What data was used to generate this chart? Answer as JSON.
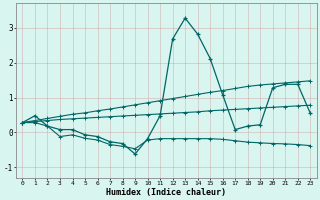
{
  "xlabel": "Humidex (Indice chaleur)",
  "background_color": "#d8f5f0",
  "grid_color": "#aacfcf",
  "line_color": "#006666",
  "xlim": [
    -0.5,
    23.5
  ],
  "ylim": [
    -1.3,
    3.7
  ],
  "xticks": [
    0,
    1,
    2,
    3,
    4,
    5,
    6,
    7,
    8,
    9,
    10,
    11,
    12,
    13,
    14,
    15,
    16,
    17,
    18,
    19,
    20,
    21,
    22,
    23
  ],
  "yticks": [
    -1,
    0,
    1,
    2,
    3
  ],
  "line1_x": [
    0,
    1,
    2,
    3,
    4,
    5,
    6,
    7,
    8,
    9,
    10,
    11,
    12,
    13,
    14,
    15,
    16,
    17,
    18,
    19,
    20,
    21,
    22,
    23
  ],
  "line1_y": [
    0.28,
    0.48,
    0.18,
    0.08,
    0.08,
    -0.07,
    -0.12,
    -0.27,
    -0.32,
    -0.62,
    -0.18,
    0.48,
    2.68,
    3.28,
    2.82,
    2.12,
    1.08,
    0.08,
    0.18,
    0.22,
    1.28,
    1.38,
    1.38,
    0.55
  ],
  "line2_x": [
    0,
    1,
    2,
    3,
    4,
    5,
    6,
    7,
    8,
    9,
    10,
    11,
    12,
    13,
    14,
    15,
    16,
    17,
    18,
    19,
    20,
    21,
    22,
    23
  ],
  "line2_y": [
    0.28,
    0.34,
    0.4,
    0.46,
    0.52,
    0.56,
    0.62,
    0.67,
    0.73,
    0.79,
    0.85,
    0.91,
    0.97,
    1.03,
    1.09,
    1.15,
    1.2,
    1.26,
    1.32,
    1.36,
    1.39,
    1.42,
    1.45,
    1.48
  ],
  "line3_x": [
    0,
    1,
    2,
    3,
    4,
    5,
    6,
    7,
    8,
    9,
    10,
    11,
    12,
    13,
    14,
    15,
    16,
    17,
    18,
    19,
    20,
    21,
    22,
    23
  ],
  "line3_y": [
    0.28,
    0.31,
    0.34,
    0.37,
    0.39,
    0.41,
    0.43,
    0.45,
    0.47,
    0.49,
    0.51,
    0.53,
    0.55,
    0.57,
    0.59,
    0.62,
    0.64,
    0.66,
    0.68,
    0.7,
    0.72,
    0.74,
    0.76,
    0.78
  ],
  "line4_x": [
    0,
    1,
    2,
    3,
    4,
    5,
    6,
    7,
    8,
    9,
    10,
    11,
    12,
    13,
    14,
    15,
    16,
    17,
    18,
    19,
    20,
    21,
    22,
    23
  ],
  "line4_y": [
    0.28,
    0.28,
    0.18,
    -0.12,
    -0.07,
    -0.17,
    -0.22,
    -0.35,
    -0.4,
    -0.47,
    -0.22,
    -0.18,
    -0.18,
    -0.18,
    -0.18,
    -0.18,
    -0.2,
    -0.24,
    -0.28,
    -0.3,
    -0.32,
    -0.33,
    -0.35,
    -0.38
  ]
}
